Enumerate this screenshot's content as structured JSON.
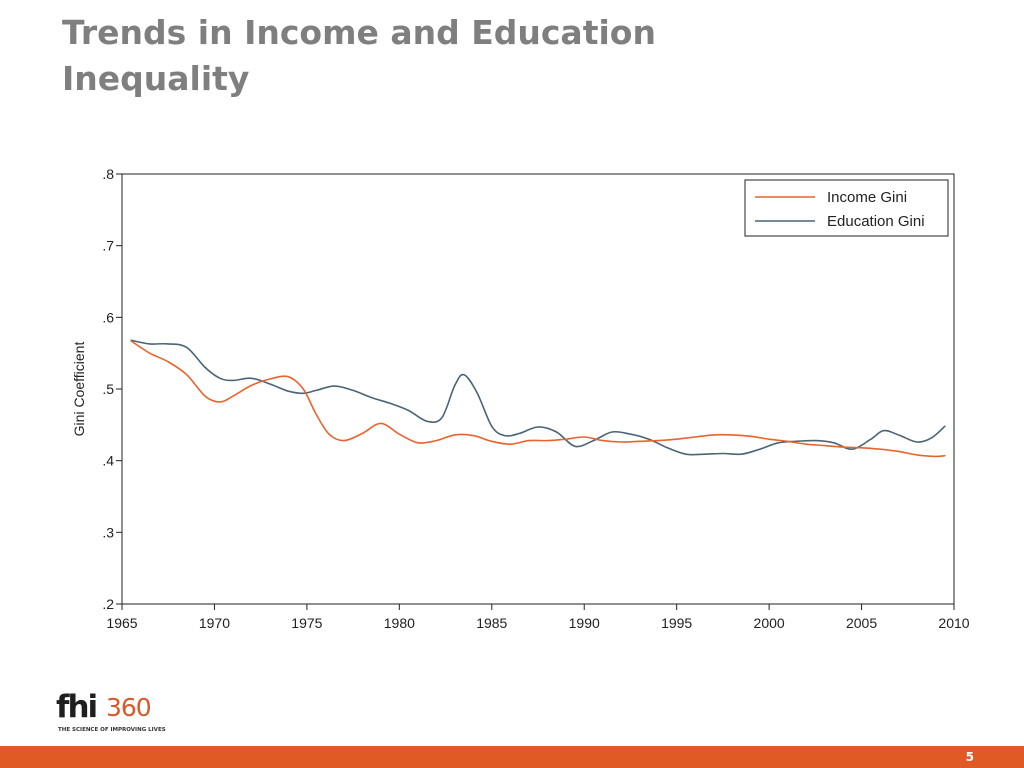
{
  "slide": {
    "title": "Trends in Income and Education Inequality",
    "page_number": "5"
  },
  "logo": {
    "text_main": "fhi",
    "text_number": "360",
    "tagline": "THE SCIENCE OF IMPROVING LIVES"
  },
  "colors": {
    "title": "#7f7f7f",
    "footer_bar": "#e05a26",
    "income_series": "#e8642c",
    "education_series": "#4a6478"
  },
  "chart_data": {
    "type": "line",
    "title": "",
    "xlabel": "",
    "ylabel": "Gini Coefficient",
    "xlim": [
      1965,
      2010
    ],
    "ylim": [
      0.2,
      0.8
    ],
    "x_ticks": [
      1965,
      1970,
      1975,
      1980,
      1985,
      1990,
      1995,
      2000,
      2005,
      2010
    ],
    "x_tick_labels": [
      "1965",
      "1970",
      "1975",
      "1980",
      "1985",
      "1990",
      "1995",
      "2000",
      "2005",
      "2010"
    ],
    "y_ticks": [
      0.2,
      0.3,
      0.4,
      0.5,
      0.6,
      0.7,
      0.8
    ],
    "y_tick_labels": [
      ".2",
      ".3",
      ".4",
      ".5",
      ".6",
      ".7",
      ".8"
    ],
    "grid": false,
    "legend_position": "top-right",
    "series": [
      {
        "name": "Income Gini",
        "color": "#e8642c",
        "points": [
          [
            1965.5,
            0.567
          ],
          [
            1966.5,
            0.55
          ],
          [
            1967.5,
            0.538
          ],
          [
            1968.5,
            0.52
          ],
          [
            1969.5,
            0.49
          ],
          [
            1970.3,
            0.482
          ],
          [
            1971.0,
            0.49
          ],
          [
            1972.0,
            0.505
          ],
          [
            1973.0,
            0.514
          ],
          [
            1974.0,
            0.517
          ],
          [
            1974.8,
            0.5
          ],
          [
            1975.5,
            0.465
          ],
          [
            1976.2,
            0.437
          ],
          [
            1977.0,
            0.428
          ],
          [
            1978.0,
            0.438
          ],
          [
            1979.0,
            0.452
          ],
          [
            1980.0,
            0.437
          ],
          [
            1981.0,
            0.425
          ],
          [
            1982.0,
            0.428
          ],
          [
            1983.0,
            0.436
          ],
          [
            1984.0,
            0.435
          ],
          [
            1985.0,
            0.427
          ],
          [
            1986.0,
            0.423
          ],
          [
            1987.0,
            0.428
          ],
          [
            1988.0,
            0.428
          ],
          [
            1989.0,
            0.43
          ],
          [
            1990.0,
            0.433
          ],
          [
            1991.0,
            0.428
          ],
          [
            1992.0,
            0.426
          ],
          [
            1993.0,
            0.427
          ],
          [
            1994.0,
            0.428
          ],
          [
            1995.0,
            0.43
          ],
          [
            1996.0,
            0.433
          ],
          [
            1997.0,
            0.436
          ],
          [
            1998.0,
            0.436
          ],
          [
            1999.0,
            0.434
          ],
          [
            2000.0,
            0.43
          ],
          [
            2001.0,
            0.427
          ],
          [
            2002.0,
            0.423
          ],
          [
            2003.0,
            0.421
          ],
          [
            2004.0,
            0.419
          ],
          [
            2005.0,
            0.418
          ],
          [
            2006.0,
            0.416
          ],
          [
            2007.0,
            0.413
          ],
          [
            2008.0,
            0.408
          ],
          [
            2009.0,
            0.406
          ],
          [
            2009.5,
            0.407
          ]
        ]
      },
      {
        "name": "Education Gini",
        "color": "#4a6478",
        "points": [
          [
            1965.5,
            0.568
          ],
          [
            1966.5,
            0.563
          ],
          [
            1967.5,
            0.563
          ],
          [
            1968.5,
            0.558
          ],
          [
            1969.5,
            0.53
          ],
          [
            1970.3,
            0.515
          ],
          [
            1971.0,
            0.512
          ],
          [
            1972.0,
            0.515
          ],
          [
            1973.0,
            0.507
          ],
          [
            1974.0,
            0.497
          ],
          [
            1974.8,
            0.494
          ],
          [
            1975.5,
            0.498
          ],
          [
            1976.5,
            0.504
          ],
          [
            1977.5,
            0.498
          ],
          [
            1978.5,
            0.488
          ],
          [
            1979.5,
            0.48
          ],
          [
            1980.5,
            0.47
          ],
          [
            1981.5,
            0.455
          ],
          [
            1982.3,
            0.46
          ],
          [
            1983.0,
            0.505
          ],
          [
            1983.5,
            0.52
          ],
          [
            1984.2,
            0.495
          ],
          [
            1985.0,
            0.448
          ],
          [
            1985.7,
            0.435
          ],
          [
            1986.5,
            0.438
          ],
          [
            1987.5,
            0.447
          ],
          [
            1988.5,
            0.44
          ],
          [
            1989.5,
            0.42
          ],
          [
            1990.5,
            0.428
          ],
          [
            1991.5,
            0.44
          ],
          [
            1992.5,
            0.437
          ],
          [
            1993.5,
            0.43
          ],
          [
            1994.5,
            0.418
          ],
          [
            1995.5,
            0.409
          ],
          [
            1996.5,
            0.409
          ],
          [
            1997.5,
            0.41
          ],
          [
            1998.5,
            0.409
          ],
          [
            1999.5,
            0.416
          ],
          [
            2000.5,
            0.425
          ],
          [
            2001.5,
            0.427
          ],
          [
            2002.5,
            0.428
          ],
          [
            2003.5,
            0.425
          ],
          [
            2004.5,
            0.416
          ],
          [
            2005.5,
            0.43
          ],
          [
            2006.2,
            0.442
          ],
          [
            2007.0,
            0.436
          ],
          [
            2008.0,
            0.426
          ],
          [
            2008.8,
            0.432
          ],
          [
            2009.5,
            0.448
          ]
        ]
      }
    ]
  }
}
